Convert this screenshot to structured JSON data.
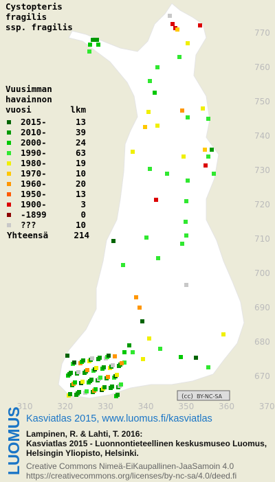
{
  "title": [
    "Cystopteris",
    "fragilis",
    "ssp. fragilis"
  ],
  "legend": {
    "heading": [
      "Vuusimman",
      "havainnon",
      "vuosi"
    ],
    "count_heading": "lkm",
    "rows": [
      {
        "label": "2015-",
        "count": 13,
        "color": "#006400"
      },
      {
        "label": "2010-",
        "count": 39,
        "color": "#009a00"
      },
      {
        "label": "2000-",
        "count": 24,
        "color": "#00c800"
      },
      {
        "label": "1990-",
        "count": 63,
        "color": "#30e830"
      },
      {
        "label": "1980-",
        "count": 19,
        "color": "#f0f000"
      },
      {
        "label": "1970-",
        "count": 10,
        "color": "#ffc800"
      },
      {
        "label": "1960-",
        "count": 20,
        "color": "#ff9600"
      },
      {
        "label": "1950-",
        "count": 13,
        "color": "#ff5a00"
      },
      {
        "label": "1900-",
        "count": 3,
        "color": "#dc0000"
      },
      {
        "label": "-1899",
        "count": 0,
        "color": "#8c0000"
      },
      {
        "label": "???",
        "count": 10,
        "color": "#c8c8c8"
      }
    ],
    "total": {
      "label": "Yhteensä",
      "count": 214
    }
  },
  "x_labels": [
    310,
    320,
    330,
    340,
    350,
    360,
    370
  ],
  "y_labels": [
    670,
    680,
    690,
    700,
    710,
    720,
    730,
    740,
    750,
    760,
    770
  ],
  "license_badge": "BY-NC-SA",
  "footer": {
    "brand": "LUOMUS",
    "link": "Kasviatlas 2015, www.luomus.fi/kasviatlas",
    "citation": [
      "Lampinen, R. & Lahti, T. 2016:",
      "Kasviatlas 2015 - Luonnontieteellinen keskusmuseo Luomus,",
      "Helsingin Yliopisto, Helsinki."
    ],
    "license": [
      "Creative Commons Nimeä-EiKaupallinen-JaaSamoin 4.0",
      "https://creativecommons.org/licenses/by-nc-sa/4.0/deed.fi"
    ]
  }
}
